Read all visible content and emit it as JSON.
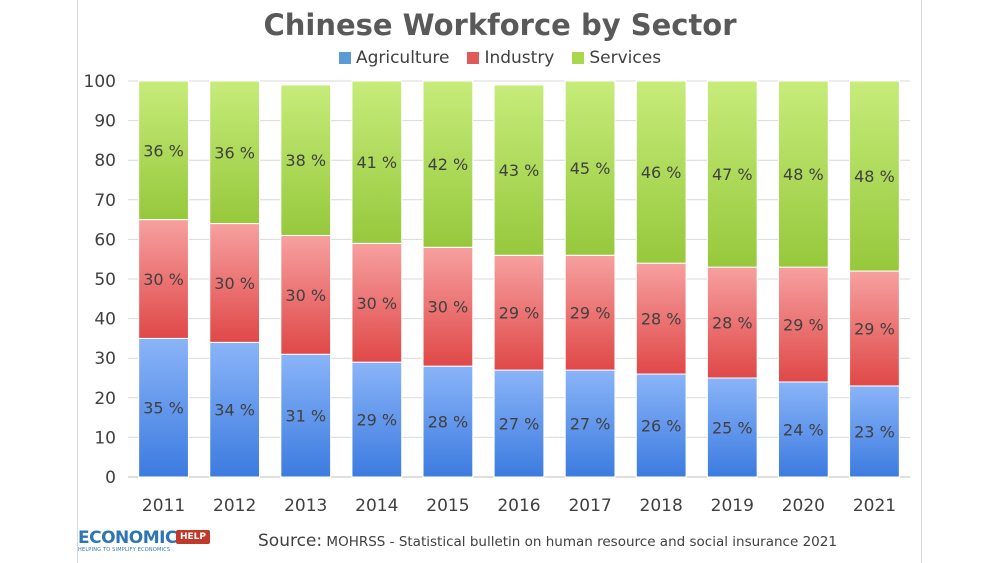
{
  "chart_data": {
    "type": "bar",
    "stacked": true,
    "title": "Chinese Workforce by Sector",
    "categories": [
      "2011",
      "2012",
      "2013",
      "2014",
      "2015",
      "2016",
      "2017",
      "2018",
      "2019",
      "2020",
      "2021"
    ],
    "series": [
      {
        "name": "Agriculture",
        "values": [
          35,
          34,
          31,
          29,
          28,
          27,
          27,
          26,
          25,
          24,
          23
        ],
        "labels": [
          "35 %",
          "34 %",
          "31 %",
          "29 %",
          "28 %",
          "27 %",
          "27 %",
          "26 %",
          "25 %",
          "24 %",
          "23 %"
        ],
        "color": "#8ab4f8",
        "color_dark": "#3c7be0"
      },
      {
        "name": "Industry",
        "values": [
          30,
          30,
          30,
          30,
          30,
          29,
          29,
          28,
          28,
          29,
          29
        ],
        "labels": [
          "30 %",
          "30 %",
          "30 %",
          "30 %",
          "30 %",
          "29 %",
          "29 %",
          "28 %",
          "28 %",
          "29 %",
          "29 %"
        ],
        "color": "#f7a0a0",
        "color_dark": "#e04848"
      },
      {
        "name": "Services",
        "values": [
          36,
          36,
          38,
          41,
          42,
          43,
          45,
          46,
          47,
          48,
          48
        ],
        "labels": [
          "36 %",
          "36 %",
          "38 %",
          "41 %",
          "42 %",
          "43 %",
          "45 %",
          "46 %",
          "47 %",
          "48 %",
          "48 %"
        ],
        "color": "#c6ec7a",
        "color_dark": "#96c83c"
      }
    ],
    "ylim": [
      0,
      100
    ],
    "yticks": [
      "0",
      "10",
      "20",
      "30",
      "40",
      "50",
      "60",
      "70",
      "80",
      "90",
      "100"
    ],
    "grid": true,
    "legend_position": "top"
  },
  "footer": {
    "logo_main": "ECONOMICS",
    "logo_help": "HELP",
    "logo_tagline": "HELPING TO SIMPLIFY ECONOMICS",
    "source_label": "Source:",
    "source_text": "MOHRSS - Statistical bulletin on human resource and social insurance 2021"
  }
}
